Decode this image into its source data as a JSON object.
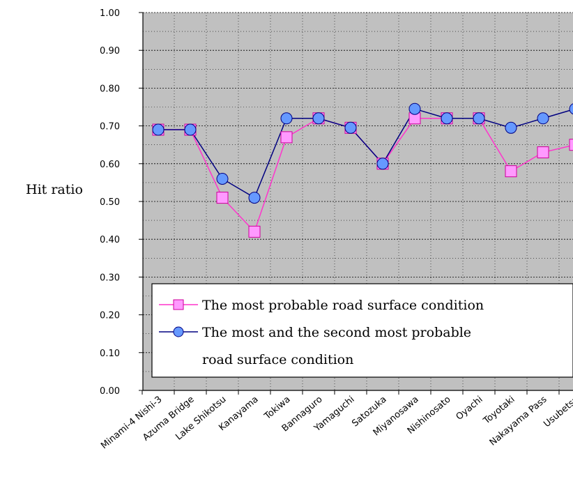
{
  "chart_data": {
    "type": "line",
    "title": "",
    "xlabel": "",
    "ylabel": "Hit ratio",
    "ylim": [
      0,
      1
    ],
    "ytick_labels": [
      "0.00",
      "0.10",
      "0.20",
      "0.30",
      "0.40",
      "0.50",
      "0.60",
      "0.70",
      "0.80",
      "0.90",
      "1.00"
    ],
    "categories": [
      "Minami-4 Nishi-3",
      "Azuma Bridge",
      "Lake Shikotsu",
      "Kanayama",
      "Tokiwa",
      "Bannaguro",
      "Yamaguchi",
      "Satozuka",
      "Miyanosawa",
      "Nishinosato",
      "Oyachi",
      "Toyotaki",
      "Nakayama Pass",
      "Usubetsu"
    ],
    "grid": true,
    "legend_position": "bottom",
    "series": [
      {
        "name": "The most probable road surface condition",
        "marker": "square",
        "color": "#ff33cc",
        "marker_fill": "#ff99ff",
        "values": [
          0.69,
          0.69,
          0.51,
          0.42,
          0.67,
          0.72,
          0.695,
          0.6,
          0.72,
          0.72,
          0.72,
          0.58,
          0.63,
          0.65
        ]
      },
      {
        "name": "The most and the second most probable road surface condition",
        "legend_lines": [
          "The most and the second most probable",
          "road surface condition"
        ],
        "marker": "circle",
        "color": "#000080",
        "marker_fill": "#6699ff",
        "values": [
          0.69,
          0.69,
          0.56,
          0.51,
          0.72,
          0.72,
          0.695,
          0.6,
          0.745,
          0.72,
          0.72,
          0.695,
          0.72,
          0.745
        ]
      }
    ],
    "plot_background": "#c0c0c0"
  }
}
